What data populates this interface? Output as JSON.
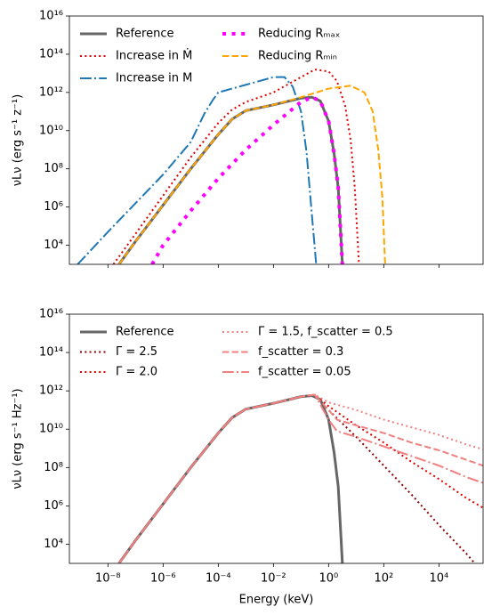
{
  "chart_data": [
    {
      "type": "line",
      "xscale": "log",
      "yscale": "log",
      "legend": "upper left",
      "ylabel": "νLν (erg s⁻¹ z⁻¹)",
      "xlim": [
        4e-10,
        400000.0
      ],
      "xticks": [
        1e-08,
        1e-06,
        0.0001,
        0.01,
        1,
        100.0,
        10000.0
      ],
      "ylim": [
        1000.0,
        1e+16
      ],
      "yticks": [
        {
          "value": 10000.0,
          "label": "10⁴"
        },
        {
          "value": 1000000.0,
          "label": "10⁶"
        },
        {
          "value": 100000000.0,
          "label": "10⁸"
        },
        {
          "value": 10000000000.0,
          "label": "10¹⁰"
        },
        {
          "value": 1000000000000.0,
          "label": "10¹²"
        },
        {
          "value": 100000000000000.0,
          "label": "10¹⁴"
        },
        {
          "value": 1e+16,
          "label": "10¹⁶"
        }
      ],
      "series": [
        {
          "name": "Reference",
          "color": "#666666",
          "linestyle": "solid",
          "linewidth": 3,
          "x": [
            2.51e-08,
            1e-07,
            1e-06,
            1e-05,
            0.0001,
            0.000316,
            0.001,
            0.01,
            0.1,
            0.251,
            0.501,
            1,
            1.58,
            2.24,
            3.16
          ],
          "values": [
            1000.0,
            15800.0,
            1260000.0,
            100000000.0,
            6310000000.0,
            39800000000.0,
            112000000000.0,
            224000000000.0,
            501000000000.0,
            562000000000.0,
            355000000000.0,
            31600000000.0,
            631000000.0,
            10000000.0,
            1000.0
          ]
        },
        {
          "name": "Increase in Ṁ",
          "color": "#e00000",
          "linestyle": "dotted",
          "linewidth": 2,
          "x": [
            1.58e-08,
            1e-07,
            1e-06,
            1e-05,
            0.0001,
            0.000316,
            0.001,
            0.01,
            0.1,
            0.316,
            1,
            2,
            3.98,
            6.31,
            8.91,
            12.6
          ],
          "values": [
            1000.0,
            39800.0,
            3980000.0,
            398000000.0,
            25100000000.0,
            126000000000.0,
            316000000000.0,
            1000000000000.0,
            6310000000000.0,
            15800000000000.0,
            12600000000000.0,
            3980000000000.0,
            200000000000.0,
            3160000000.0,
            10000000.0,
            1000.0
          ]
        },
        {
          "name": "Increase in M",
          "color": "#1f77b4",
          "linestyle": "dashdot",
          "linewidth": 2,
          "x": [
            7.94e-10,
            1e-08,
            1e-07,
            1e-06,
            1e-05,
            3.16e-05,
            6.31e-05,
            0.0001,
            0.001,
            0.01,
            0.0251,
            0.0501,
            0.1,
            0.158,
            0.251,
            0.355
          ],
          "values": [
            1000.0,
            50100.0,
            1580000.0,
            50100000.0,
            2510000000.0,
            79400000000.0,
            398000000000.0,
            1000000000000.0,
            2510000000000.0,
            6310000000000.0,
            6310000000000.0,
            2000000000000.0,
            100000000000.0,
            794000000.0,
            316000.0,
            1000.0
          ]
        },
        {
          "name": "Reducing Rₘₐₓ",
          "color": "#ff00ff",
          "linestyle": "dotted",
          "linewidth": 4,
          "x": [
            3.98e-07,
            1e-06,
            1e-05,
            0.0001,
            0.001,
            0.01,
            0.0316,
            0.1,
            0.251,
            0.501,
            1,
            1.58,
            2.24,
            3.16
          ],
          "values": [
            1000.0,
            10000.0,
            631000.0,
            31600000.0,
            1000000000.0,
            20000000000.0,
            79400000000.0,
            316000000000.0,
            562000000000.0,
            355000000000.0,
            31600000000.0,
            631000000.0,
            10000000.0,
            1000.0
          ]
        },
        {
          "name": "Reducing Rₘᵢₙ",
          "color": "#ffa500",
          "linestyle": "dashed",
          "linewidth": 2,
          "x": [
            2.51e-08,
            1e-07,
            1e-06,
            1e-05,
            0.0001,
            0.000316,
            0.001,
            0.01,
            0.1,
            1,
            6.31,
            20,
            39.8,
            63.1,
            89.1,
            112
          ],
          "values": [
            1000.0,
            15800.0,
            1260000.0,
            100000000.0,
            6310000000.0,
            39800000000.0,
            112000000000.0,
            224000000000.0,
            562000000000.0,
            1580000000000.0,
            2240000000000.0,
            1000000000000.0,
            100000000000.0,
            1000000000.0,
            3160000.0,
            1000.0
          ]
        }
      ]
    },
    {
      "type": "line",
      "xscale": "log",
      "yscale": "log",
      "legend": "upper left",
      "ylabel": "νLν (erg s⁻¹ Hz⁻¹)",
      "xlabel": "Energy (keV)",
      "xlim": [
        4e-10,
        400000.0
      ],
      "xticks": [
        {
          "value": 1e-08,
          "label": "10⁻⁸"
        },
        {
          "value": 1e-06,
          "label": "10⁻⁶"
        },
        {
          "value": 0.0001,
          "label": "10⁻⁴"
        },
        {
          "value": 0.01,
          "label": "10⁻²"
        },
        {
          "value": 1,
          "label": "10⁰"
        },
        {
          "value": 100.0,
          "label": "10²"
        },
        {
          "value": 10000.0,
          "label": "10⁴"
        }
      ],
      "ylim": [
        1000.0,
        1e+16
      ],
      "yticks": [
        {
          "value": 10000.0,
          "label": "10⁴"
        },
        {
          "value": 1000000.0,
          "label": "10⁶"
        },
        {
          "value": 100000000.0,
          "label": "10⁸"
        },
        {
          "value": 10000000000.0,
          "label": "10¹⁰"
        },
        {
          "value": 1000000000000.0,
          "label": "10¹²"
        },
        {
          "value": 100000000000000.0,
          "label": "10¹⁴"
        },
        {
          "value": 1e+16,
          "label": "10¹⁶"
        }
      ],
      "series": [
        {
          "name": "Reference",
          "color": "#666666",
          "linestyle": "solid",
          "linewidth": 3,
          "x": [
            2.51e-08,
            1e-07,
            1e-06,
            1e-05,
            0.0001,
            0.000316,
            0.001,
            0.01,
            0.1,
            0.251,
            0.501,
            1,
            1.58,
            2.24,
            3.16
          ],
          "values": [
            1000.0,
            15800.0,
            1260000.0,
            100000000.0,
            6310000000.0,
            39800000000.0,
            112000000000.0,
            224000000000.0,
            501000000000.0,
            562000000000.0,
            355000000000.0,
            31600000000.0,
            631000000.0,
            10000000.0,
            1000.0
          ]
        },
        {
          "name": "Γ = 2.5",
          "color": "#8b0000",
          "linestyle": "dotted",
          "linewidth": 2,
          "x": [
            2.51e-08,
            1e-07,
            1e-06,
            1e-05,
            0.0001,
            0.000316,
            0.001,
            0.01,
            0.1,
            0.316,
            1,
            10,
            100,
            1000.0,
            10000.0,
            100000.0,
            200000.0
          ],
          "values": [
            1000.0,
            15800.0,
            1260000.0,
            100000000.0,
            6310000000.0,
            39800000000.0,
            112000000000.0,
            224000000000.0,
            501000000000.0,
            631000000000.0,
            100000000000.0,
            3980000000.0,
            126000000.0,
            3980000.0,
            100000.0,
            3160.0,
            1000.0
          ]
        },
        {
          "name": "Γ = 2.0",
          "color": "#e00000",
          "linestyle": "dotted",
          "linewidth": 2,
          "x": [
            2.51e-08,
            1e-07,
            1e-06,
            1e-05,
            0.0001,
            0.000316,
            0.001,
            0.01,
            0.1,
            0.316,
            1,
            10,
            100,
            1000.0,
            10000.0,
            100000.0,
            398000.0
          ],
          "values": [
            1000.0,
            15800.0,
            1260000.0,
            100000000.0,
            6310000000.0,
            39800000000.0,
            112000000000.0,
            224000000000.0,
            501000000000.0,
            631000000000.0,
            158000000000.0,
            15800000000.0,
            2000000000.0,
            200000000.0,
            25100000.0,
            2510000.0,
            794000.0
          ]
        },
        {
          "name": "Γ = 1.5, f_scatter = 0.5",
          "color": "#f08080",
          "linestyle": "dotted",
          "linewidth": 2,
          "x": [
            2.51e-08,
            1e-07,
            1e-06,
            1e-05,
            0.0001,
            0.000316,
            0.001,
            0.01,
            0.1,
            0.316,
            1,
            10,
            100,
            1000.0,
            10000.0,
            100000.0,
            398000.0
          ],
          "values": [
            1000.0,
            15800.0,
            1260000.0,
            100000000.0,
            6310000000.0,
            39800000000.0,
            112000000000.0,
            224000000000.0,
            501000000000.0,
            631000000000.0,
            251000000000.0,
            100000000000.0,
            31600000000.0,
            12600000000.0,
            5010000000.0,
            1580000000.0,
            891000000.0
          ]
        },
        {
          "name": "f_scatter = 0.3",
          "color": "#f08080",
          "linestyle": "dashed",
          "linewidth": 2,
          "x": [
            2.51e-08,
            1e-07,
            1e-06,
            1e-05,
            0.0001,
            0.000316,
            0.001,
            0.01,
            0.1,
            0.316,
            1,
            2,
            10,
            100,
            1000.0,
            10000.0,
            100000.0,
            398000.0
          ],
          "values": [
            1000.0,
            15800.0,
            1260000.0,
            100000000.0,
            6310000000.0,
            39800000000.0,
            112000000000.0,
            224000000000.0,
            501000000000.0,
            631000000000.0,
            100000000000.0,
            31600000000.0,
            15800000000.0,
            6310000000.0,
            2000000000.0,
            794000000.0,
            251000000.0,
            126000000.0
          ]
        },
        {
          "name": "f_scatter = 0.05",
          "color": "#f08080",
          "linestyle": "dashdot",
          "linewidth": 2,
          "x": [
            2.51e-08,
            1e-07,
            1e-06,
            1e-05,
            0.0001,
            0.000316,
            0.001,
            0.01,
            0.1,
            0.316,
            1,
            2,
            10,
            100,
            1000.0,
            10000.0,
            100000.0,
            398000.0
          ],
          "values": [
            1000.0,
            15800.0,
            1260000.0,
            100000000.0,
            6310000000.0,
            39800000000.0,
            112000000000.0,
            224000000000.0,
            501000000000.0,
            631000000000.0,
            31600000000.0,
            7940000000.0,
            3980000000.0,
            1260000000.0,
            398000000.0,
            126000000.0,
            31600000.0,
            15800000.0
          ]
        }
      ]
    }
  ]
}
